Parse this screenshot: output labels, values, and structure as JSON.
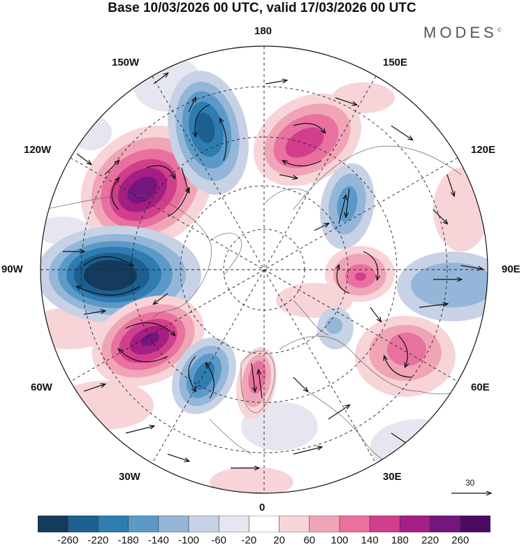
{
  "title": "Base 10/03/2026 00 UTC, valid 17/03/2026 00 UTC",
  "brand": "MODES",
  "brand_mark": "©",
  "longitude_labels": {
    "top": "180",
    "bottom": "0",
    "left": "90W",
    "right": "90E",
    "top_left": "150W",
    "top_right": "150E",
    "upper_left": "120W",
    "upper_right": "120E",
    "lower_left": "60W",
    "lower_right": "60E",
    "bottom_left": "30W",
    "bottom_right": "30E"
  },
  "colorbar": {
    "ticks": [
      "-260",
      "-220",
      "-180",
      "-140",
      "-100",
      "-60",
      "-20",
      "20",
      "60",
      "100",
      "140",
      "180",
      "220",
      "260"
    ],
    "colors": [
      "#143b5c",
      "#1d5f8e",
      "#2f7cb0",
      "#5b9ac8",
      "#94b6d8",
      "#c7d2e6",
      "#e6e6f1",
      "#ffffff",
      "#f7d4d8",
      "#f0a5b6",
      "#e871a0",
      "#d13f8c",
      "#a41e83",
      "#75167e",
      "#4c0b63"
    ]
  },
  "reference_vector_label": "30",
  "colors": {
    "negative_strong": "#143b5c",
    "positive_strong": "#75167e",
    "arrow": "#111111"
  }
}
